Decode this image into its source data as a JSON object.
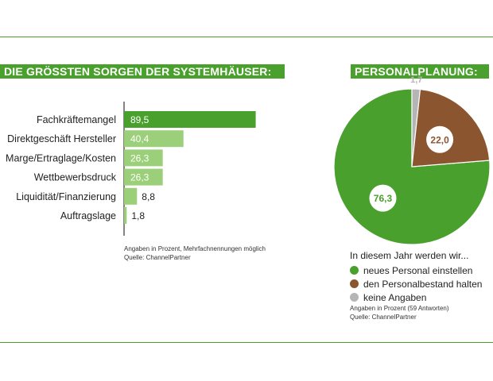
{
  "colors": {
    "green_dark": "#4aa02c",
    "green_light": "#9bcf7a",
    "brown": "#8b5530",
    "grey": "#b5b5b5"
  },
  "left_panel": {
    "title": "DIE GRÖSSTEN SORGEN DER SYSTEMHÄUSER:",
    "note_line1": "Angaben in Prozent, Mehrfachnennungen möglich",
    "note_line2": "Quelle: ChannelPartner"
  },
  "right_panel": {
    "title": "PERSONALPLANUNG:",
    "legend_title": "In diesem Jahr werden wir...",
    "note_line1": "Angaben in Prozent (59 Antworten)",
    "note_line2": "Quelle: ChannelPartner"
  },
  "chart_data": [
    {
      "type": "bar",
      "orientation": "horizontal",
      "title": "DIE GRÖSSTEN SORGEN DER SYSTEMHÄUSER:",
      "categories": [
        "Fachkräftemangel",
        "Direktgeschäft Hersteller",
        "Marge/Ertraglage/Kosten",
        "Wettbewerbsdruck",
        "Liquidität/Finanzierung",
        "Auftragslage"
      ],
      "values": [
        89.5,
        40.4,
        26.3,
        26.3,
        8.8,
        1.8
      ],
      "value_labels": [
        "89,5",
        "40,4",
        "26,3",
        "26,3",
        "8,8",
        "1,8"
      ],
      "xlim": [
        0,
        100
      ],
      "grid": false
    },
    {
      "type": "pie",
      "title": "PERSONALPLANUNG:",
      "legend_title": "In diesem Jahr werden wir...",
      "slices": [
        {
          "label": "neues Personal einstellen",
          "value": 76.3,
          "value_label": "76,3",
          "color": "#4aa02c"
        },
        {
          "label": "keine Angaben",
          "value": 1.7,
          "value_label": "1,7",
          "color": "#b5b5b5"
        },
        {
          "label": "den Personalbestand halten",
          "value": 22.0,
          "value_label": "22,0",
          "color": "#8b5530"
        }
      ],
      "legend_order": [
        "neues Personal einstellen",
        "den Personalbestand halten",
        "keine Angaben"
      ],
      "legend_placement": "bottom"
    }
  ]
}
